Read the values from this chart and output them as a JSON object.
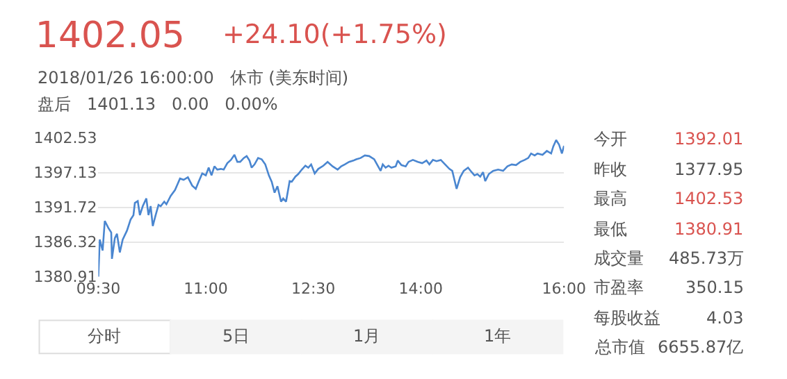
{
  "chart_data": {
    "type": "line",
    "title": "1402.05",
    "annotations": [
      "+24.10(+1.75%)",
      "2018/01/26 16:00:00   休市 (美东时间)",
      "盘后   1401.13   0.00   0.00%",
      "今开",
      "1392.01",
      "昨收",
      "1377.95",
      "最高",
      "1402.53",
      "最低",
      "1380.91",
      "成交量",
      "485.73万",
      "市盈率",
      "350.15",
      "每股收益",
      "4.03",
      "总市值",
      "6655.87亿",
      "分时",
      "5日",
      "1月",
      "1年"
    ],
    "x": [
      9.5,
      9.52,
      9.56,
      9.59,
      9.64,
      9.68,
      9.69,
      9.73,
      9.76,
      9.8,
      9.84,
      9.9,
      9.95,
      9.99,
      10.01,
      10.05,
      10.08,
      10.12,
      10.17,
      10.2,
      10.23,
      10.26,
      10.3,
      10.34,
      10.37,
      10.42,
      10.45,
      10.51,
      10.57,
      10.64,
      10.69,
      10.75,
      10.81,
      10.86,
      10.9,
      10.95,
      11.0,
      11.04,
      11.08,
      11.12,
      11.16,
      11.21,
      11.25,
      11.3,
      11.35,
      11.4,
      11.44,
      11.48,
      11.53,
      11.57,
      11.61,
      11.64,
      11.68,
      11.73,
      11.78,
      11.83,
      11.88,
      11.92,
      11.96,
      12.0,
      12.05,
      12.08,
      12.12,
      12.17,
      12.2,
      12.25,
      12.29,
      12.34,
      12.39,
      12.43,
      12.47,
      12.52,
      12.57,
      12.64,
      12.7,
      12.77,
      12.84,
      12.89,
      12.94,
      13.0,
      13.06,
      13.1,
      13.16,
      13.22,
      13.28,
      13.35,
      13.39,
      13.44,
      13.47,
      13.51,
      13.55,
      13.59,
      13.65,
      13.68,
      13.73,
      13.79,
      13.83,
      13.89,
      13.96,
      14.02,
      14.08,
      14.12,
      14.17,
      14.22,
      14.28,
      14.34,
      14.4,
      14.44,
      14.47,
      14.5,
      14.55,
      14.6,
      14.66,
      14.71,
      14.75,
      14.79,
      14.83,
      14.87,
      14.9,
      14.95,
      15.01,
      15.08,
      15.15,
      15.21,
      15.27,
      15.33,
      15.39,
      15.45,
      15.5,
      15.54,
      15.59,
      15.63,
      15.7,
      15.76,
      15.82,
      15.85,
      15.89,
      15.93,
      15.97,
      16.0
    ],
    "series": [
      {
        "color": "#4a86d0",
        "values": [
          1380.91,
          1386.7,
          1385.0,
          1389.6,
          1388.5,
          1387.8,
          1383.7,
          1386.9,
          1387.6,
          1384.7,
          1386.7,
          1388.1,
          1389.8,
          1390.5,
          1392.4,
          1392.7,
          1390.5,
          1391.9,
          1393.1,
          1390.5,
          1391.9,
          1388.8,
          1390.5,
          1392.1,
          1391.9,
          1392.6,
          1392.2,
          1393.5,
          1394.4,
          1396.2,
          1396.0,
          1396.4,
          1395.1,
          1394.6,
          1395.7,
          1397.0,
          1396.7,
          1397.9,
          1396.7,
          1398.1,
          1397.6,
          1397.7,
          1397.6,
          1398.6,
          1399.1,
          1399.9,
          1398.8,
          1398.8,
          1399.4,
          1399.7,
          1399.0,
          1397.9,
          1398.4,
          1399.4,
          1399.2,
          1398.4,
          1396.7,
          1395.7,
          1394.0,
          1395.0,
          1392.6,
          1393.1,
          1392.6,
          1395.8,
          1395.7,
          1396.5,
          1396.9,
          1397.6,
          1398.2,
          1397.9,
          1398.4,
          1397.0,
          1397.7,
          1398.2,
          1398.8,
          1398.1,
          1397.6,
          1398.1,
          1398.4,
          1398.8,
          1399.0,
          1399.2,
          1399.4,
          1399.8,
          1399.7,
          1399.2,
          1398.4,
          1397.4,
          1398.4,
          1397.9,
          1398.2,
          1397.9,
          1398.1,
          1399.0,
          1398.3,
          1398.1,
          1398.8,
          1399.1,
          1398.8,
          1398.6,
          1399.0,
          1398.4,
          1399.1,
          1398.9,
          1399.1,
          1398.4,
          1397.7,
          1397.4,
          1396.0,
          1394.6,
          1396.4,
          1397.4,
          1397.9,
          1397.2,
          1396.7,
          1396.9,
          1396.5,
          1397.2,
          1395.8,
          1396.9,
          1397.4,
          1397.6,
          1397.4,
          1398.1,
          1398.4,
          1398.3,
          1398.8,
          1399.1,
          1399.4,
          1400.1,
          1399.8,
          1400.1,
          1399.9,
          1400.5,
          1400.1,
          1401.2,
          1402.2,
          1401.5,
          1400.1,
          1401.3
        ]
      }
    ],
    "xlim": [
      9.5,
      16
    ],
    "xticks": [
      {
        "value": 9.5,
        "label": "09:30"
      },
      {
        "value": 11,
        "label": "11:00"
      },
      {
        "value": 12.5,
        "label": "12:30"
      },
      {
        "value": 14,
        "label": "14:00"
      },
      {
        "value": 16,
        "label": "16:00"
      }
    ],
    "ylim": [
      1380.91,
      1402.53
    ],
    "yticks": [
      1380.91,
      1386.32,
      1391.72,
      1397.13,
      1402.53
    ],
    "grid": "y",
    "marker": "none",
    "line_style": "solid"
  }
}
